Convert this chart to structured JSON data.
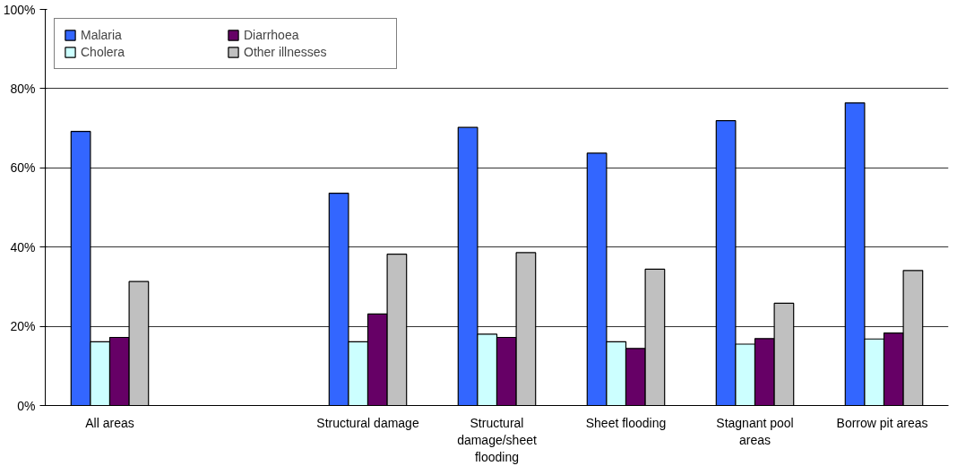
{
  "chart_data": {
    "type": "bar",
    "categories": [
      "All areas",
      null,
      "Structural damage",
      "Structural damage/sheet flooding",
      "Sheet flooding",
      "Stagnant pool areas",
      "Borrow  pit areas"
    ],
    "series": [
      {
        "name": "Malaria",
        "color": "#3366ff",
        "values": [
          69.2,
          null,
          53.6,
          70.2,
          63.7,
          71.9,
          76.4
        ]
      },
      {
        "name": "Cholera",
        "color": "#ccffff",
        "values": [
          16.1,
          null,
          16.1,
          18.0,
          16.1,
          15.5,
          16.8
        ]
      },
      {
        "name": "Diarrhoea",
        "color": "#660066",
        "values": [
          17.2,
          null,
          23.1,
          17.2,
          14.4,
          16.9,
          18.3
        ]
      },
      {
        "name": "Other illnesses",
        "color": "#c0c0c0",
        "values": [
          31.3,
          null,
          38.2,
          38.6,
          34.4,
          25.8,
          34.1
        ]
      }
    ],
    "ylim": [
      0,
      100
    ],
    "yticks": [
      {
        "value": 0,
        "label": "0%"
      },
      {
        "value": 20,
        "label": "20%"
      },
      {
        "value": 40,
        "label": "40%"
      },
      {
        "value": 60,
        "label": "60%"
      },
      {
        "value": 80,
        "label": "80%"
      },
      {
        "value": 100,
        "label": "100%"
      }
    ],
    "grid": "y",
    "legend": "top left"
  }
}
